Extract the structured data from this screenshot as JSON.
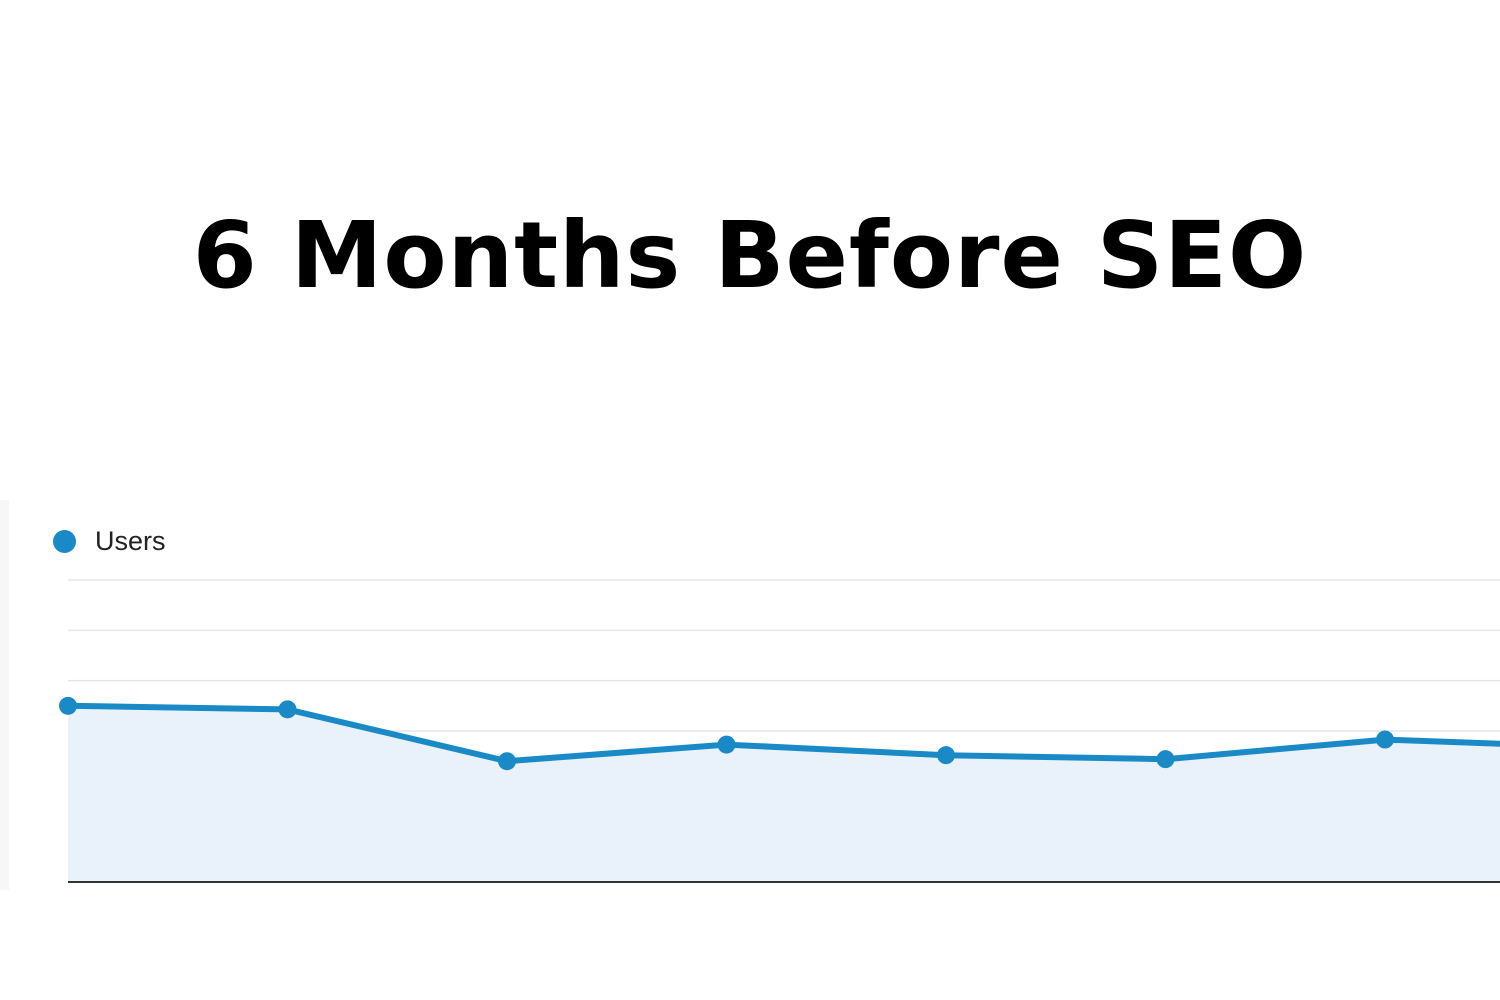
{
  "title": "6 Months Before SEO",
  "chart_data": {
    "type": "area",
    "title": "6 Months Before SEO",
    "xlabel": "",
    "ylabel": "",
    "grid": true,
    "legend": "top-left",
    "x": [
      1,
      2,
      3,
      4,
      5,
      6,
      7,
      8
    ],
    "ylim": [
      0,
      6
    ],
    "series": [
      {
        "name": "Users",
        "color": "#1a8ac6",
        "fill": "#e9f2fa",
        "values": [
          3.5,
          3.43,
          2.4,
          2.73,
          2.52,
          2.44,
          2.83,
          2.67
        ]
      }
    ]
  }
}
